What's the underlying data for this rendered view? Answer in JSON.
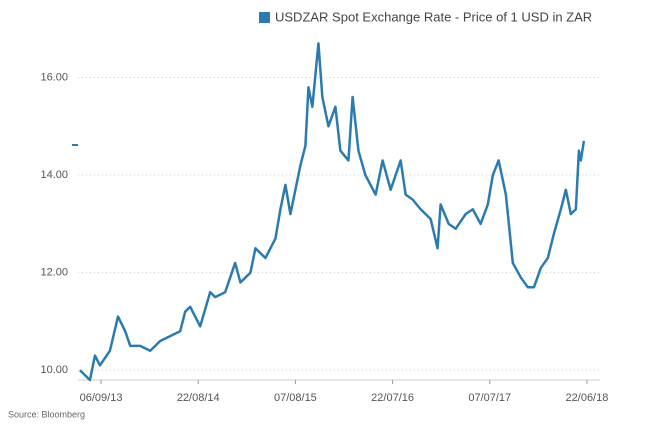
{
  "chart_data": {
    "type": "line",
    "series": [
      {
        "name": "USDZAR Spot Exchange Rate - Price of 1 USD in ZAR",
        "color": "#2b7bb0",
        "values": [
          10.0,
          9.9,
          9.8,
          10.3,
          10.1,
          10.4,
          11.1,
          10.8,
          10.5,
          10.5,
          10.4,
          10.6,
          10.7,
          10.8,
          11.2,
          11.3,
          10.9,
          11.6,
          11.5,
          11.6,
          12.2,
          11.8,
          12.0,
          12.5,
          12.3,
          12.7,
          13.3,
          13.8,
          13.2,
          13.7,
          14.2,
          14.6,
          15.8,
          15.4,
          16.7,
          15.6,
          15.0,
          15.4,
          14.5,
          14.3,
          15.6,
          14.5,
          14.0,
          13.6,
          14.3,
          13.7,
          14.3,
          13.6,
          13.5,
          13.3,
          13.1,
          12.5,
          13.4,
          13.0,
          12.9,
          13.2,
          13.3,
          13.0,
          13.4,
          14.0,
          14.3,
          13.6,
          12.2,
          11.9,
          11.7,
          11.7,
          12.1,
          12.3,
          12.8,
          13.3,
          13.7,
          13.2,
          13.3,
          14.5,
          14.3,
          14.7
        ]
      }
    ],
    "x": [
      "2013-06-22",
      "2013-07-10",
      "2013-07-28",
      "2013-08-15",
      "2013-09-02",
      "2013-10-08",
      "2013-11-06",
      "2013-12-02",
      "2013-12-20",
      "2014-01-25",
      "2014-03-02",
      "2014-04-07",
      "2014-05-13",
      "2014-06-18",
      "2014-07-06",
      "2014-07-24",
      "2014-08-29",
      "2014-10-04",
      "2014-10-22",
      "2014-11-27",
      "2015-01-02",
      "2015-01-21",
      "2015-02-26",
      "2015-03-16",
      "2015-04-21",
      "2015-05-27",
      "2015-06-14",
      "2015-07-02",
      "2015-07-20",
      "2015-08-07",
      "2015-08-25",
      "2015-09-12",
      "2015-09-23",
      "2015-10-07",
      "2015-10-29",
      "2015-11-12",
      "2015-12-04",
      "2015-12-29",
      "2016-01-16",
      "2016-02-14",
      "2016-02-29",
      "2016-03-21",
      "2016-04-15",
      "2016-05-22",
      "2016-06-16",
      "2016-07-15",
      "2016-08-20",
      "2016-09-07",
      "2016-10-02",
      "2016-10-31",
      "2016-12-06",
      "2016-12-31",
      "2017-01-11",
      "2017-02-09",
      "2017-03-06",
      "2017-04-11",
      "2017-05-07",
      "2017-06-04",
      "2017-06-30",
      "2017-07-18",
      "2017-08-08",
      "2017-09-03",
      "2017-09-28",
      "2017-10-27",
      "2017-11-21",
      "2017-12-13",
      "2018-01-07",
      "2018-02-01",
      "2018-02-23",
      "2018-03-20",
      "2018-04-07",
      "2018-04-25",
      "2018-05-13",
      "2018-05-24",
      "2018-05-31",
      "2018-06-11"
    ],
    "xlim": [
      "2013-06-15",
      "2018-08-08"
    ],
    "xticks": [
      {
        "value": "2013-09-06",
        "label": "06/09/13"
      },
      {
        "value": "2014-08-22",
        "label": "22/08/14"
      },
      {
        "value": "2015-08-07",
        "label": "07/08/15"
      },
      {
        "value": "2016-07-22",
        "label": "22/07/16"
      },
      {
        "value": "2017-07-07",
        "label": "07/07/17"
      },
      {
        "value": "2018-06-22",
        "label": "22/06/18"
      }
    ],
    "ylim": [
      9.8,
      17.2
    ],
    "yticks": [
      {
        "value": 10,
        "label": "10.00"
      },
      {
        "value": 12,
        "label": "12.00"
      },
      {
        "value": 14,
        "label": "14.00"
      },
      {
        "value": 16,
        "label": "16.00"
      }
    ],
    "grid": true,
    "source": "Source: Bloomberg"
  }
}
